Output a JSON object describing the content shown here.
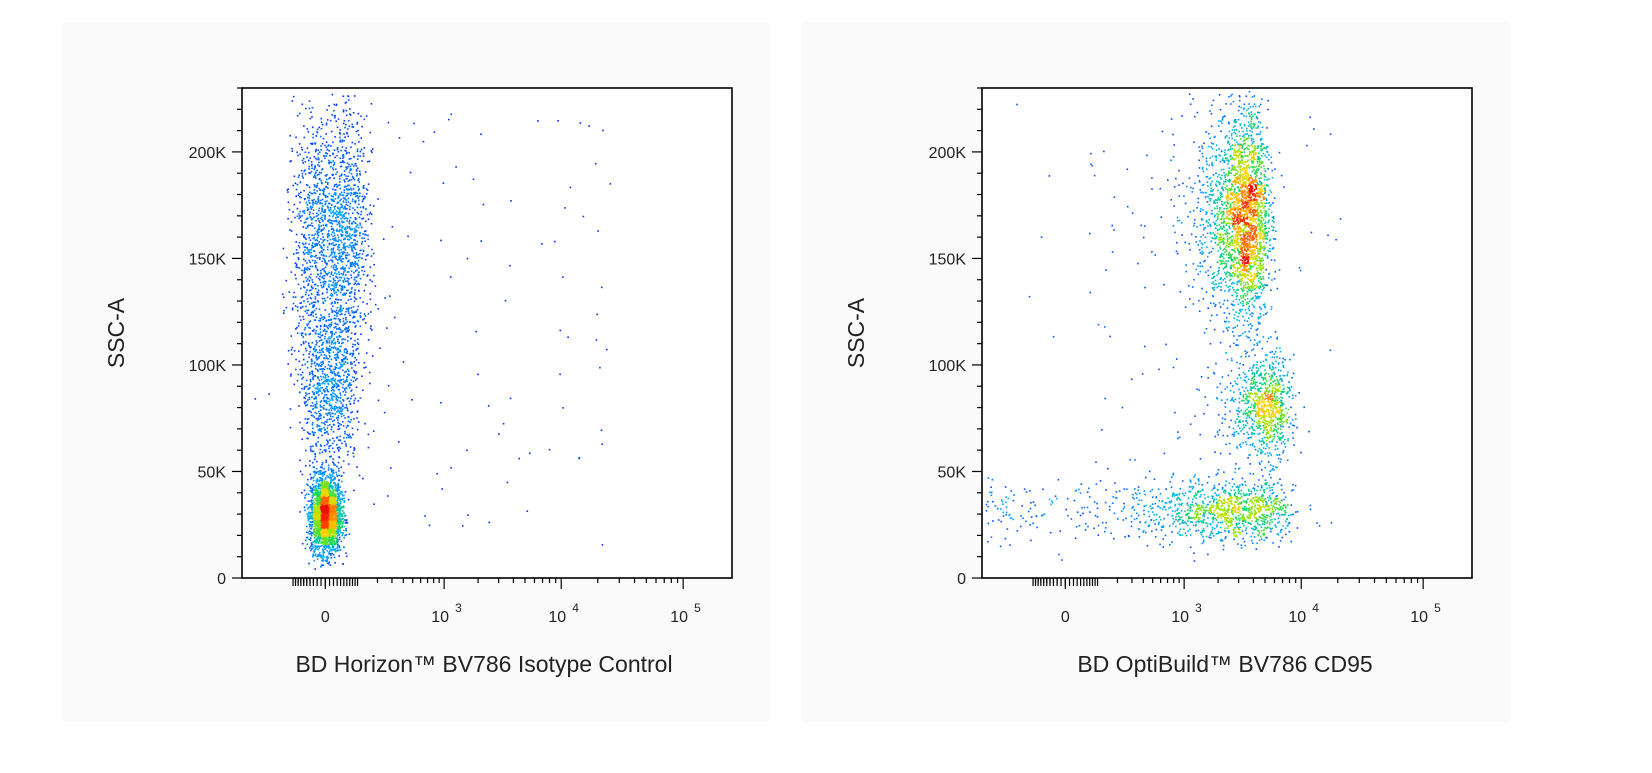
{
  "chart_data": [
    {
      "type": "scatter",
      "subtype": "flow-cytometry pseudocolor dot plot",
      "xlabel": "BD Horizon™ BV786 Isotype Control",
      "ylabel": "SSC-A",
      "x_scale": "biexponential",
      "y_scale": "linear",
      "ylim": [
        0,
        230000
      ],
      "x_ticks": [
        {
          "base": "0",
          "exp": ""
        },
        {
          "base": "10",
          "exp": "3"
        },
        {
          "base": "10",
          "exp": "4"
        },
        {
          "base": "10",
          "exp": "5"
        }
      ],
      "y_ticks": [
        {
          "value": 0,
          "label": "0"
        },
        {
          "value": 50000,
          "label": "50K"
        },
        {
          "value": 100000,
          "label": "100K"
        },
        {
          "value": 150000,
          "label": "150K"
        },
        {
          "value": 200000,
          "label": "200K"
        }
      ],
      "populations": [
        {
          "x_center": 0,
          "y_center": 30000,
          "x_spread": 20,
          "y_spread": 9000,
          "density": "very high",
          "note": "dense low-SSC cluster"
        },
        {
          "x_center": 20,
          "y_center": 160000,
          "x_spread": 60,
          "y_spread": 30000,
          "density": "high",
          "note": "high-SSC population, negative for BV786"
        },
        {
          "x_center": 10,
          "y_center": 90000,
          "x_spread": 40,
          "y_spread": 20000,
          "density": "medium",
          "note": "bridge between clusters"
        }
      ],
      "outliers": "sparse events scattered between 10^2 and 10^4"
    },
    {
      "type": "scatter",
      "subtype": "flow-cytometry pseudocolor dot plot",
      "xlabel": "BD OptiBuild™ BV786 CD95",
      "ylabel": "SSC-A",
      "x_scale": "biexponential",
      "y_scale": "linear",
      "ylim": [
        0,
        230000
      ],
      "x_ticks": [
        {
          "base": "0",
          "exp": ""
        },
        {
          "base": "10",
          "exp": "3"
        },
        {
          "base": "10",
          "exp": "4"
        },
        {
          "base": "10",
          "exp": "5"
        }
      ],
      "y_ticks": [
        {
          "value": 0,
          "label": "0"
        },
        {
          "value": 50000,
          "label": "50K"
        },
        {
          "value": 100000,
          "label": "100K"
        },
        {
          "value": 150000,
          "label": "150K"
        },
        {
          "value": 200000,
          "label": "200K"
        }
      ],
      "populations": [
        {
          "x_center": 3200,
          "y_center": 170000,
          "x_spread": 1000,
          "y_spread": 25000,
          "density": "very high",
          "note": "CD95+ high-SSC cluster"
        },
        {
          "x_center": 5000,
          "y_center": 80000,
          "x_spread": 1500,
          "y_spread": 12000,
          "density": "medium",
          "note": "CD95+ intermediate-SSC cluster"
        },
        {
          "x_center": 1000,
          "y_center": 32000,
          "x_spread": 3000,
          "y_spread": 7000,
          "density": "high",
          "note": "low-SSC band spanning negative to CD95+"
        }
      ],
      "outliers": "sparse events across the plot"
    }
  ]
}
